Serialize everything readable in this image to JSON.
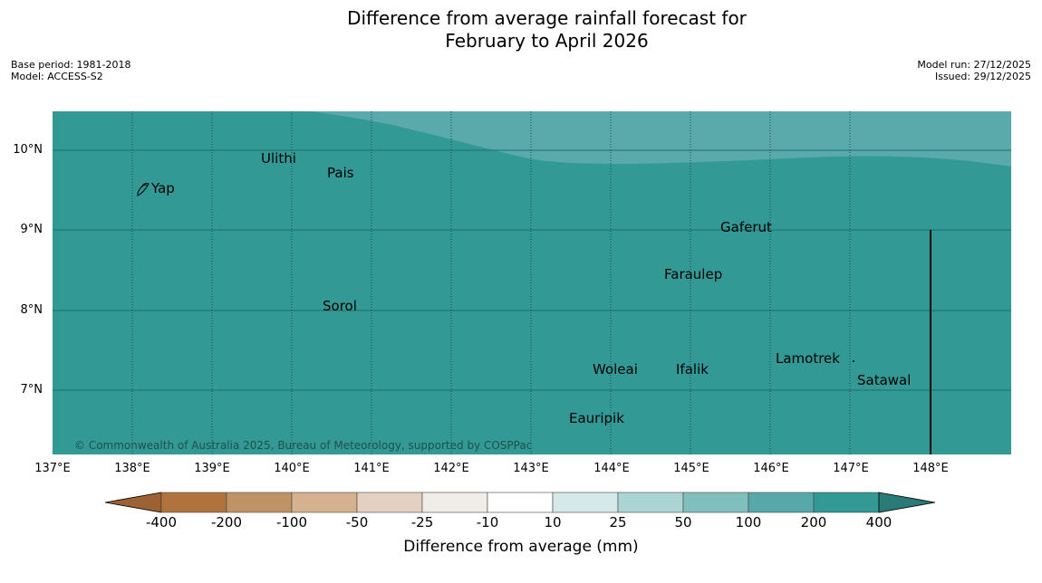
{
  "title": {
    "line1": "Difference from average rainfall forecast for",
    "line2": "February to April 2026"
  },
  "meta": {
    "base_period": "Base period: 1981-2018",
    "model": "Model: ACCESS-S2",
    "model_run": "Model run: 27/12/2025",
    "issued": "Issued: 29/12/2025"
  },
  "colors": {
    "dominant": "#329995",
    "lighter": "#5aaaab"
  },
  "axes": {
    "lat_labels": [
      "10°N",
      "9°N",
      "8°N",
      "7°N"
    ],
    "lon_labels": [
      "137°E",
      "138°E",
      "139°E",
      "140°E",
      "141°E",
      "142°E",
      "143°E",
      "144°E",
      "145°E",
      "146°E",
      "147°E",
      "148°E"
    ]
  },
  "places": [
    {
      "name": "Ulithi",
      "lon": 139.78,
      "lat": 9.87
    },
    {
      "name": "Pais",
      "lon": 140.52,
      "lat": 9.72
    },
    {
      "name": "Yap",
      "lon": 138.16,
      "lat": 9.52
    },
    {
      "name": "Gaferut",
      "lon": 145.38,
      "lat": 9.23
    },
    {
      "name": "Faraulep",
      "lon": 144.62,
      "lat": 8.59
    },
    {
      "name": "Sorol",
      "lon": 140.38,
      "lat": 8.13
    },
    {
      "name": "Lamotrek",
      "lon": 146.0,
      "lat": 7.47
    },
    {
      "name": "Woleai",
      "lon": 143.9,
      "lat": 7.37
    },
    {
      "name": "Ifalik",
      "lon": 144.44,
      "lat": 7.25
    },
    {
      "name": "Satawal",
      "lon": 147.03,
      "lat": 7.37
    },
    {
      "name": "Eauripik",
      "lon": 143.05,
      "lat": 6.69
    }
  ],
  "copyright": "© Commonwealth of Australia 2025, Bureau of Meteorology, supported by COSPPac",
  "colorbar": {
    "title": "Difference from average (mm)",
    "ticks": [
      "-400",
      "-200",
      "-100",
      "-50",
      "-25",
      "-10",
      "10",
      "25",
      "50",
      "100",
      "200",
      "400"
    ],
    "colors": [
      "#9c6233",
      "#b0733d",
      "#c29267",
      "#d5b190",
      "#e4d0c0",
      "#f0ede9",
      "#ffffff",
      "#d4e9e8",
      "#abd4d4",
      "#80bfbd",
      "#56a9a8",
      "#329995",
      "#2a7a78"
    ]
  }
}
